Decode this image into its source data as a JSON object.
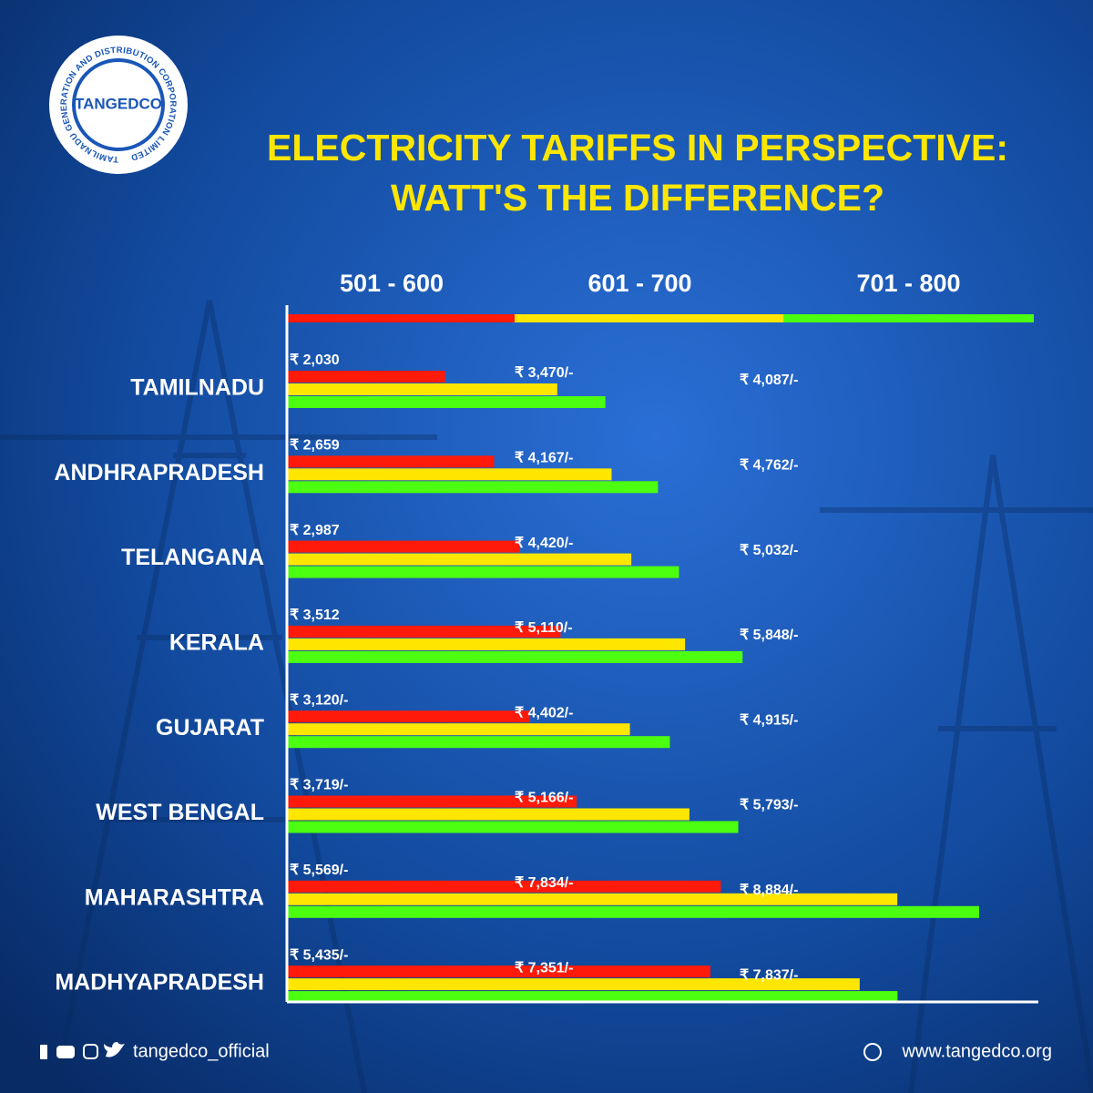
{
  "logo": {
    "name": "TANGEDCO",
    "ring_text": "TAMILNADU GENERATION AND DISTRIBUTION CORPORATION LIMITED"
  },
  "chart_data": {
    "type": "bar",
    "orientation": "horizontal",
    "title": [
      "ELECTRICITY TARIFFS IN PERSPECTIVE:",
      "WATT'S THE DIFFERENCE?"
    ],
    "categories": [
      "TAMILNADU",
      "ANDHRAPRADESH",
      "TELANGANA",
      "KERALA",
      "GUJARAT",
      "WEST BENGAL",
      "MAHARASHTRA",
      "MADHYAPRADESH"
    ],
    "series": [
      {
        "name": "501 - 600",
        "color": "#ff1a0a",
        "values": [
          2030,
          2659,
          2987,
          3512,
          3120,
          3719,
          5569,
          5435
        ],
        "value_labels": [
          "₹ 2,030",
          "₹ 2,659",
          "₹ 2,987",
          "₹ 3,512",
          "₹ 3,120/-",
          "₹ 3,719/-",
          "₹ 5,569/-",
          "₹ 5,435/-"
        ]
      },
      {
        "name": "601 - 700",
        "color": "#ffe600",
        "values": [
          3470,
          4167,
          4420,
          5110,
          4402,
          5166,
          7834,
          7351
        ],
        "value_labels": [
          "₹ 3,470/-",
          "₹ 4,167/-",
          "₹ 4,420/-",
          "₹ 5,110/-",
          "₹ 4,402/-",
          "₹ 5,166/-",
          "₹ 7,834/-",
          "₹ 7,351/-"
        ]
      },
      {
        "name": "701 - 800",
        "color": "#4cff10",
        "values": [
          4087,
          4762,
          5032,
          5848,
          4915,
          5793,
          8884,
          7837
        ],
        "value_labels": [
          "₹ 4,087/-",
          "₹ 4,762/-",
          "₹ 5,032/-",
          "₹ 5,848/-",
          "₹ 4,915/-",
          "₹ 5,793/-",
          "₹ 8,884/-",
          "₹ 7,837/-"
        ]
      }
    ],
    "legend": "top"
  },
  "footer": {
    "social": "tangedco_official",
    "website": "www.tangedco.org"
  }
}
